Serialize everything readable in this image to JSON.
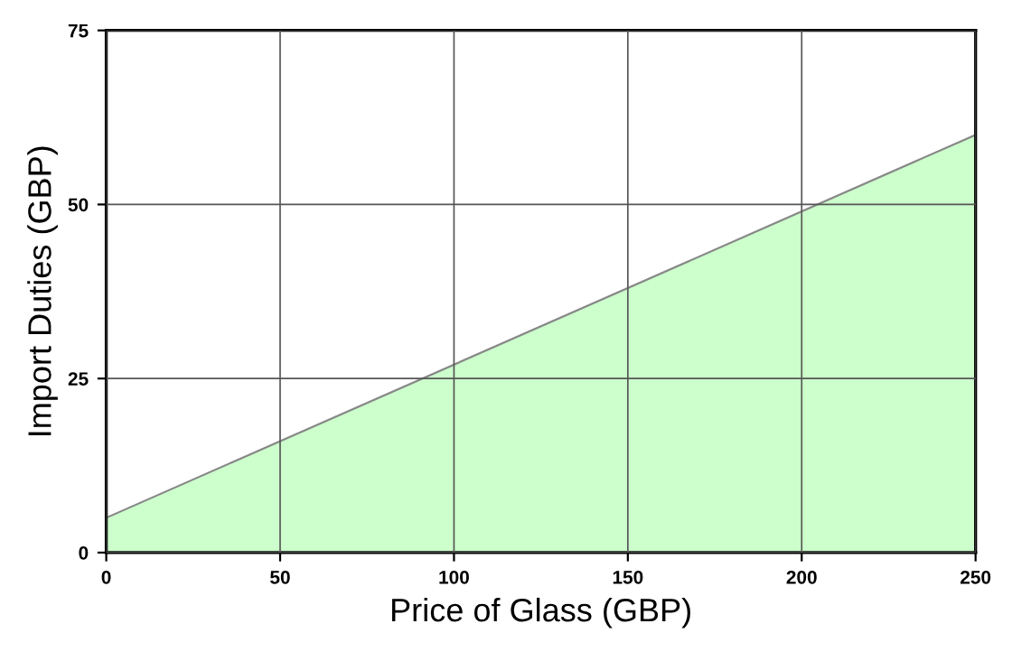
{
  "chart_data": {
    "type": "area",
    "xlabel": "Price of Glass (GBP)",
    "ylabel": "Import Duties (GBP)",
    "x": [
      0,
      250
    ],
    "series": [
      {
        "color": "#ccffcc",
        "values": [
          5,
          60
        ]
      }
    ],
    "xlim": [
      0,
      250
    ],
    "ylim": [
      0,
      75
    ],
    "xticks": [
      0,
      50,
      100,
      150,
      200,
      250
    ],
    "yticks": [
      0,
      25,
      50,
      75
    ],
    "grid": true
  }
}
